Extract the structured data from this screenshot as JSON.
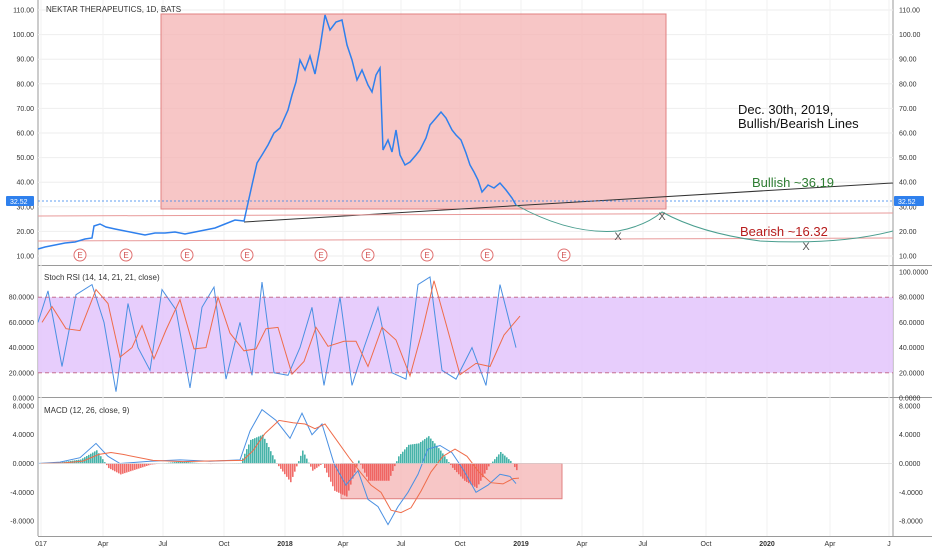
{
  "chart_title": "NEKTAR THERAPEUTICS, 1D, BATS",
  "price_axis_ticks": [
    "110.00",
    "100.00",
    "90.00",
    "80.00",
    "70.00",
    "60.00",
    "50.00",
    "40.00",
    "30.00",
    "20.00",
    "10.00"
  ],
  "last_price": "32.52",
  "earnings_marker": "E",
  "earnings_count": 10,
  "annotations": {
    "date_line1": "Dec. 30th, 2019,",
    "date_line2": "Bullish/Bearish Lines",
    "bullish": "Bullish ~36.19",
    "bearish": "Bearish ~16.32",
    "cross_mark": "X"
  },
  "rsi_panel": {
    "label": "Stoch RSI (14, 14, 21, 21, close)",
    "ticks": [
      "100.0000",
      "80.0000",
      "60.0000",
      "40.0000",
      "20.0000",
      "0.0000"
    ],
    "left_ticks": [
      "80.0000",
      "60.0000",
      "40.0000",
      "20.0000",
      "0.0000"
    ]
  },
  "macd_panel": {
    "label": "MACD (12, 26, close, 9)",
    "ticks": [
      "8.0000",
      "4.0000",
      "0.0000",
      "-4.0000",
      "-8.0000"
    ],
    "left_ticks": [
      "8.0000",
      "4.0000",
      "0.0000",
      "-4.0000",
      "-8.0000"
    ]
  },
  "time_axis": [
    "017",
    "Apr",
    "Jul",
    "Oct",
    "2018",
    "Apr",
    "Jul",
    "Oct",
    "2019",
    "Apr",
    "Jul",
    "Oct",
    "2020",
    "Apr",
    "J"
  ],
  "colors": {
    "price_line": "#2f80ed",
    "highlight_box": "#f4b3b3",
    "rsi_band": "#e3c4fb",
    "bullish_text": "#2e7d32",
    "bearish_text": "#b71c1c",
    "projection_curve": "#4a9e8f",
    "hist_up": "#26a69a",
    "hist_down": "#ef5350",
    "last_price_badge": "#2f80ed",
    "stoch_k": "#4a90e2",
    "stoch_d": "#ef6c4a"
  }
}
